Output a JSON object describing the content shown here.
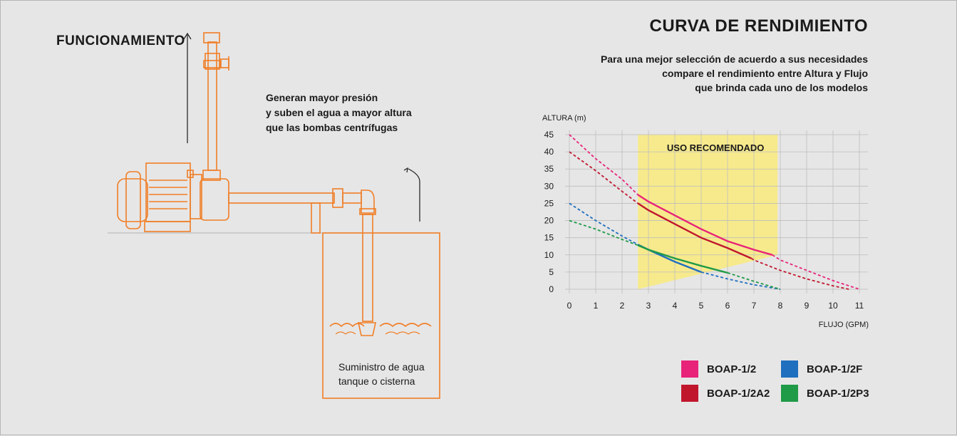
{
  "diagram": {
    "title": "FUNCIONAMIENTO",
    "benefit_lines": [
      "Generan mayor presión",
      "y suben el agua a mayor altura",
      "que las bombas centrífugas"
    ],
    "tank_caption_lines": [
      "Suministro de agua",
      "tanque o cisterna"
    ],
    "line_color": "#f07e26"
  },
  "chart_data": {
    "type": "line",
    "title": "CURVA DE RENDIMIENTO",
    "subtitle_lines": [
      "Para una mejor selección de acuerdo a sus necesidades",
      "compare el rendimiento entre Altura y Flujo",
      "que brinda cada uno de los modelos"
    ],
    "ylabel": "ALTURA (m)",
    "xlabel": "FLUJO (GPM)",
    "xlim": [
      0,
      11
    ],
    "ylim": [
      0,
      45
    ],
    "xticks": [
      0,
      1,
      2,
      3,
      4,
      5,
      6,
      7,
      8,
      9,
      10,
      11
    ],
    "yticks": [
      0,
      5,
      10,
      15,
      20,
      25,
      30,
      35,
      40,
      45
    ],
    "grid": true,
    "recommended_zone": {
      "label": "USO RECOMENDADO",
      "color": "#f7ea8c",
      "polygon": [
        [
          2.6,
          45
        ],
        [
          7.9,
          45
        ],
        [
          7.9,
          10
        ],
        [
          2.6,
          0
        ]
      ]
    },
    "series": [
      {
        "name": "BOAP-1/2",
        "color": "#e8237a",
        "points": [
          [
            0,
            45
          ],
          [
            1,
            38
          ],
          [
            2,
            32
          ],
          [
            2.6,
            27.5
          ],
          [
            3,
            25.5
          ],
          [
            4,
            21.5
          ],
          [
            5,
            17.5
          ],
          [
            6,
            14
          ],
          [
            7,
            11.5
          ],
          [
            7.7,
            10
          ],
          [
            8,
            8.5
          ],
          [
            9,
            5.5
          ],
          [
            10,
            2.5
          ],
          [
            11,
            0
          ]
        ],
        "solid_range": [
          2.6,
          7.7
        ]
      },
      {
        "name": "BOAP-1/2A2",
        "color": "#c0172d",
        "points": [
          [
            0,
            40
          ],
          [
            1,
            34.5
          ],
          [
            2,
            28.5
          ],
          [
            2.6,
            25
          ],
          [
            3,
            23
          ],
          [
            4,
            19
          ],
          [
            5,
            15
          ],
          [
            6,
            12
          ],
          [
            6.9,
            9
          ],
          [
            7,
            8.5
          ],
          [
            8,
            5.5
          ],
          [
            9,
            3
          ],
          [
            10,
            1
          ],
          [
            10.6,
            0
          ]
        ],
        "solid_range": [
          2.6,
          6.9
        ]
      },
      {
        "name": "BOAP-1/2F",
        "color": "#1f6fbf",
        "points": [
          [
            0,
            25
          ],
          [
            1,
            20
          ],
          [
            2,
            15.5
          ],
          [
            2.6,
            13
          ],
          [
            3,
            11.5
          ],
          [
            4,
            8
          ],
          [
            5,
            5
          ],
          [
            6,
            3
          ],
          [
            7,
            1.3
          ],
          [
            8,
            0
          ]
        ],
        "solid_range": [
          2.6,
          5.0
        ]
      },
      {
        "name": "BOAP-1/2P3",
        "color": "#1f9a47",
        "points": [
          [
            0,
            20
          ],
          [
            1,
            17.5
          ],
          [
            2,
            14.5
          ],
          [
            2.6,
            12.8
          ],
          [
            3,
            11.5
          ],
          [
            4,
            9
          ],
          [
            5,
            6.8
          ],
          [
            6,
            4.8
          ],
          [
            7,
            2.3
          ],
          [
            8,
            0
          ]
        ],
        "solid_range": [
          2.6,
          6.0
        ]
      }
    ],
    "legend_placement": "bottom-right"
  }
}
